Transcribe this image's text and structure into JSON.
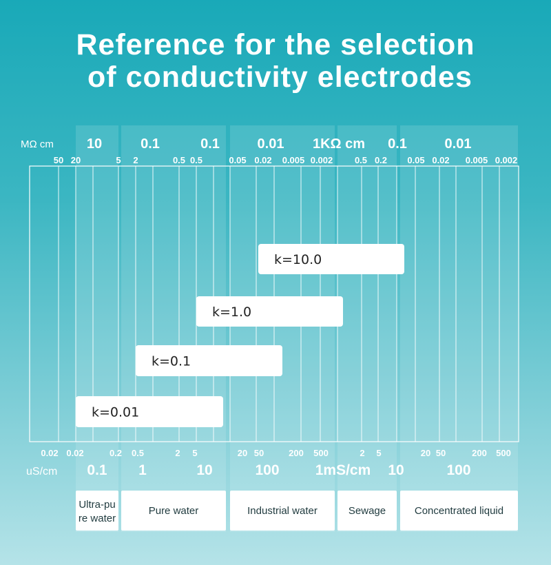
{
  "title": {
    "line1": "Reference for the selection",
    "line2": " of conductivity electrodes"
  },
  "top_axis": {
    "unit": "MΩ cm",
    "major_labels": [
      "10",
      "0.1",
      "0.1",
      "0.01",
      "1KΩ cm",
      "0.1",
      "0.01"
    ],
    "minor_labels": [
      "50",
      "20",
      "5",
      "2",
      "0.5",
      "0.5",
      "0.05",
      "0.02",
      "0.005",
      "0.002",
      "0.5",
      "0.2",
      "0.05",
      "0.02",
      "0.005",
      "0.002"
    ]
  },
  "bottom_axis": {
    "unit": "uS/cm",
    "minor_labels": [
      "0.02",
      "0.02",
      "0.2",
      "0.5",
      "2",
      "5",
      "20",
      "50",
      "200",
      "500",
      "2",
      "5",
      "20",
      "50",
      "200",
      "500"
    ],
    "major_labels": [
      "0.1",
      "1",
      "10",
      "100",
      "1mS/cm",
      "10",
      "100"
    ]
  },
  "electrodes": [
    {
      "label": "k=10.0"
    },
    {
      "label": "k=1.0"
    },
    {
      "label": "k=0.1"
    },
    {
      "label": "k=0.01"
    }
  ],
  "categories": [
    {
      "label_line1": "Ultra-pu",
      "label_line2": "re water"
    },
    {
      "label_line1": "Pure water",
      "label_line2": ""
    },
    {
      "label_line1": "Industrial water",
      "label_line2": ""
    },
    {
      "label_line1": "Sewage",
      "label_line2": ""
    },
    {
      "label_line1": "Concentrated liquid",
      "label_line2": ""
    }
  ],
  "colors": {
    "band": "#ffffff",
    "box": "#ffffff",
    "box_text": "#222222"
  }
}
